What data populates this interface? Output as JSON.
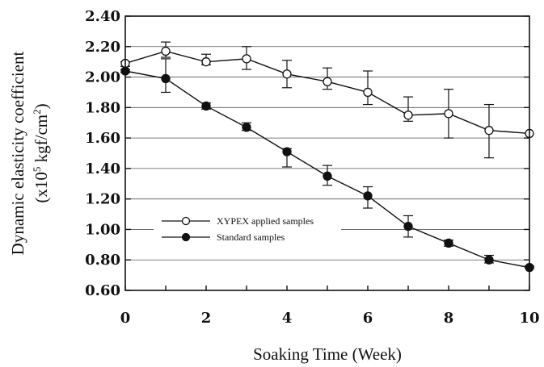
{
  "chart_data": {
    "type": "line",
    "ylabel_line1": "Dynamic elasticity coefficient",
    "ylabel_line2_prefix": "(x10",
    "ylabel_line2_exp": "5",
    "ylabel_line2_mid": " kgf/cm",
    "ylabel_line2_exp2": "2",
    "ylabel_line2_suffix": ")",
    "xlabel": "Soaking Time (Week)",
    "xlim": [
      0,
      10
    ],
    "ylim": [
      0.6,
      2.4
    ],
    "xticks": [
      0,
      2,
      4,
      6,
      8,
      10
    ],
    "yticks": [
      "2.40",
      "2.20",
      "2.00",
      "1.80",
      "1.60",
      "1.40",
      "1.20",
      "1.00",
      "0.80",
      "0.60"
    ],
    "ytick_values": [
      2.4,
      2.2,
      2.0,
      1.8,
      1.6,
      1.4,
      1.2,
      1.0,
      0.8,
      0.6
    ],
    "grid": "horizontal",
    "legend_position": "bottom-left",
    "x": [
      0,
      1,
      2,
      3,
      4,
      5,
      6,
      7,
      8,
      9,
      10
    ],
    "series": [
      {
        "name": "XYPEX applied samples",
        "marker": "open-circle",
        "values": [
          2.09,
          2.17,
          2.1,
          2.12,
          2.02,
          1.97,
          1.9,
          1.75,
          1.76,
          1.65,
          1.63
        ],
        "err_low": [
          2.07,
          2.13,
          2.08,
          2.05,
          1.93,
          1.92,
          1.82,
          1.71,
          1.6,
          1.47,
          1.63
        ],
        "err_high": [
          2.1,
          2.23,
          2.15,
          2.2,
          2.11,
          2.06,
          2.04,
          1.87,
          1.92,
          1.82,
          1.63
        ]
      },
      {
        "name": "Standard samples",
        "marker": "filled-circle",
        "values": [
          2.04,
          1.99,
          1.81,
          1.67,
          1.51,
          1.35,
          1.22,
          1.02,
          0.91,
          0.8,
          0.75
        ],
        "err_low": [
          2.03,
          1.9,
          1.79,
          1.65,
          1.41,
          1.29,
          1.14,
          0.95,
          0.89,
          0.78,
          0.75
        ],
        "err_high": [
          2.05,
          2.12,
          1.83,
          1.7,
          1.53,
          1.42,
          1.28,
          1.09,
          0.93,
          0.83,
          0.76
        ]
      }
    ]
  },
  "colors": {
    "axis": "#111111",
    "line": "#111111",
    "grid": "#555555",
    "marker_open_fill": "#ffffff"
  }
}
